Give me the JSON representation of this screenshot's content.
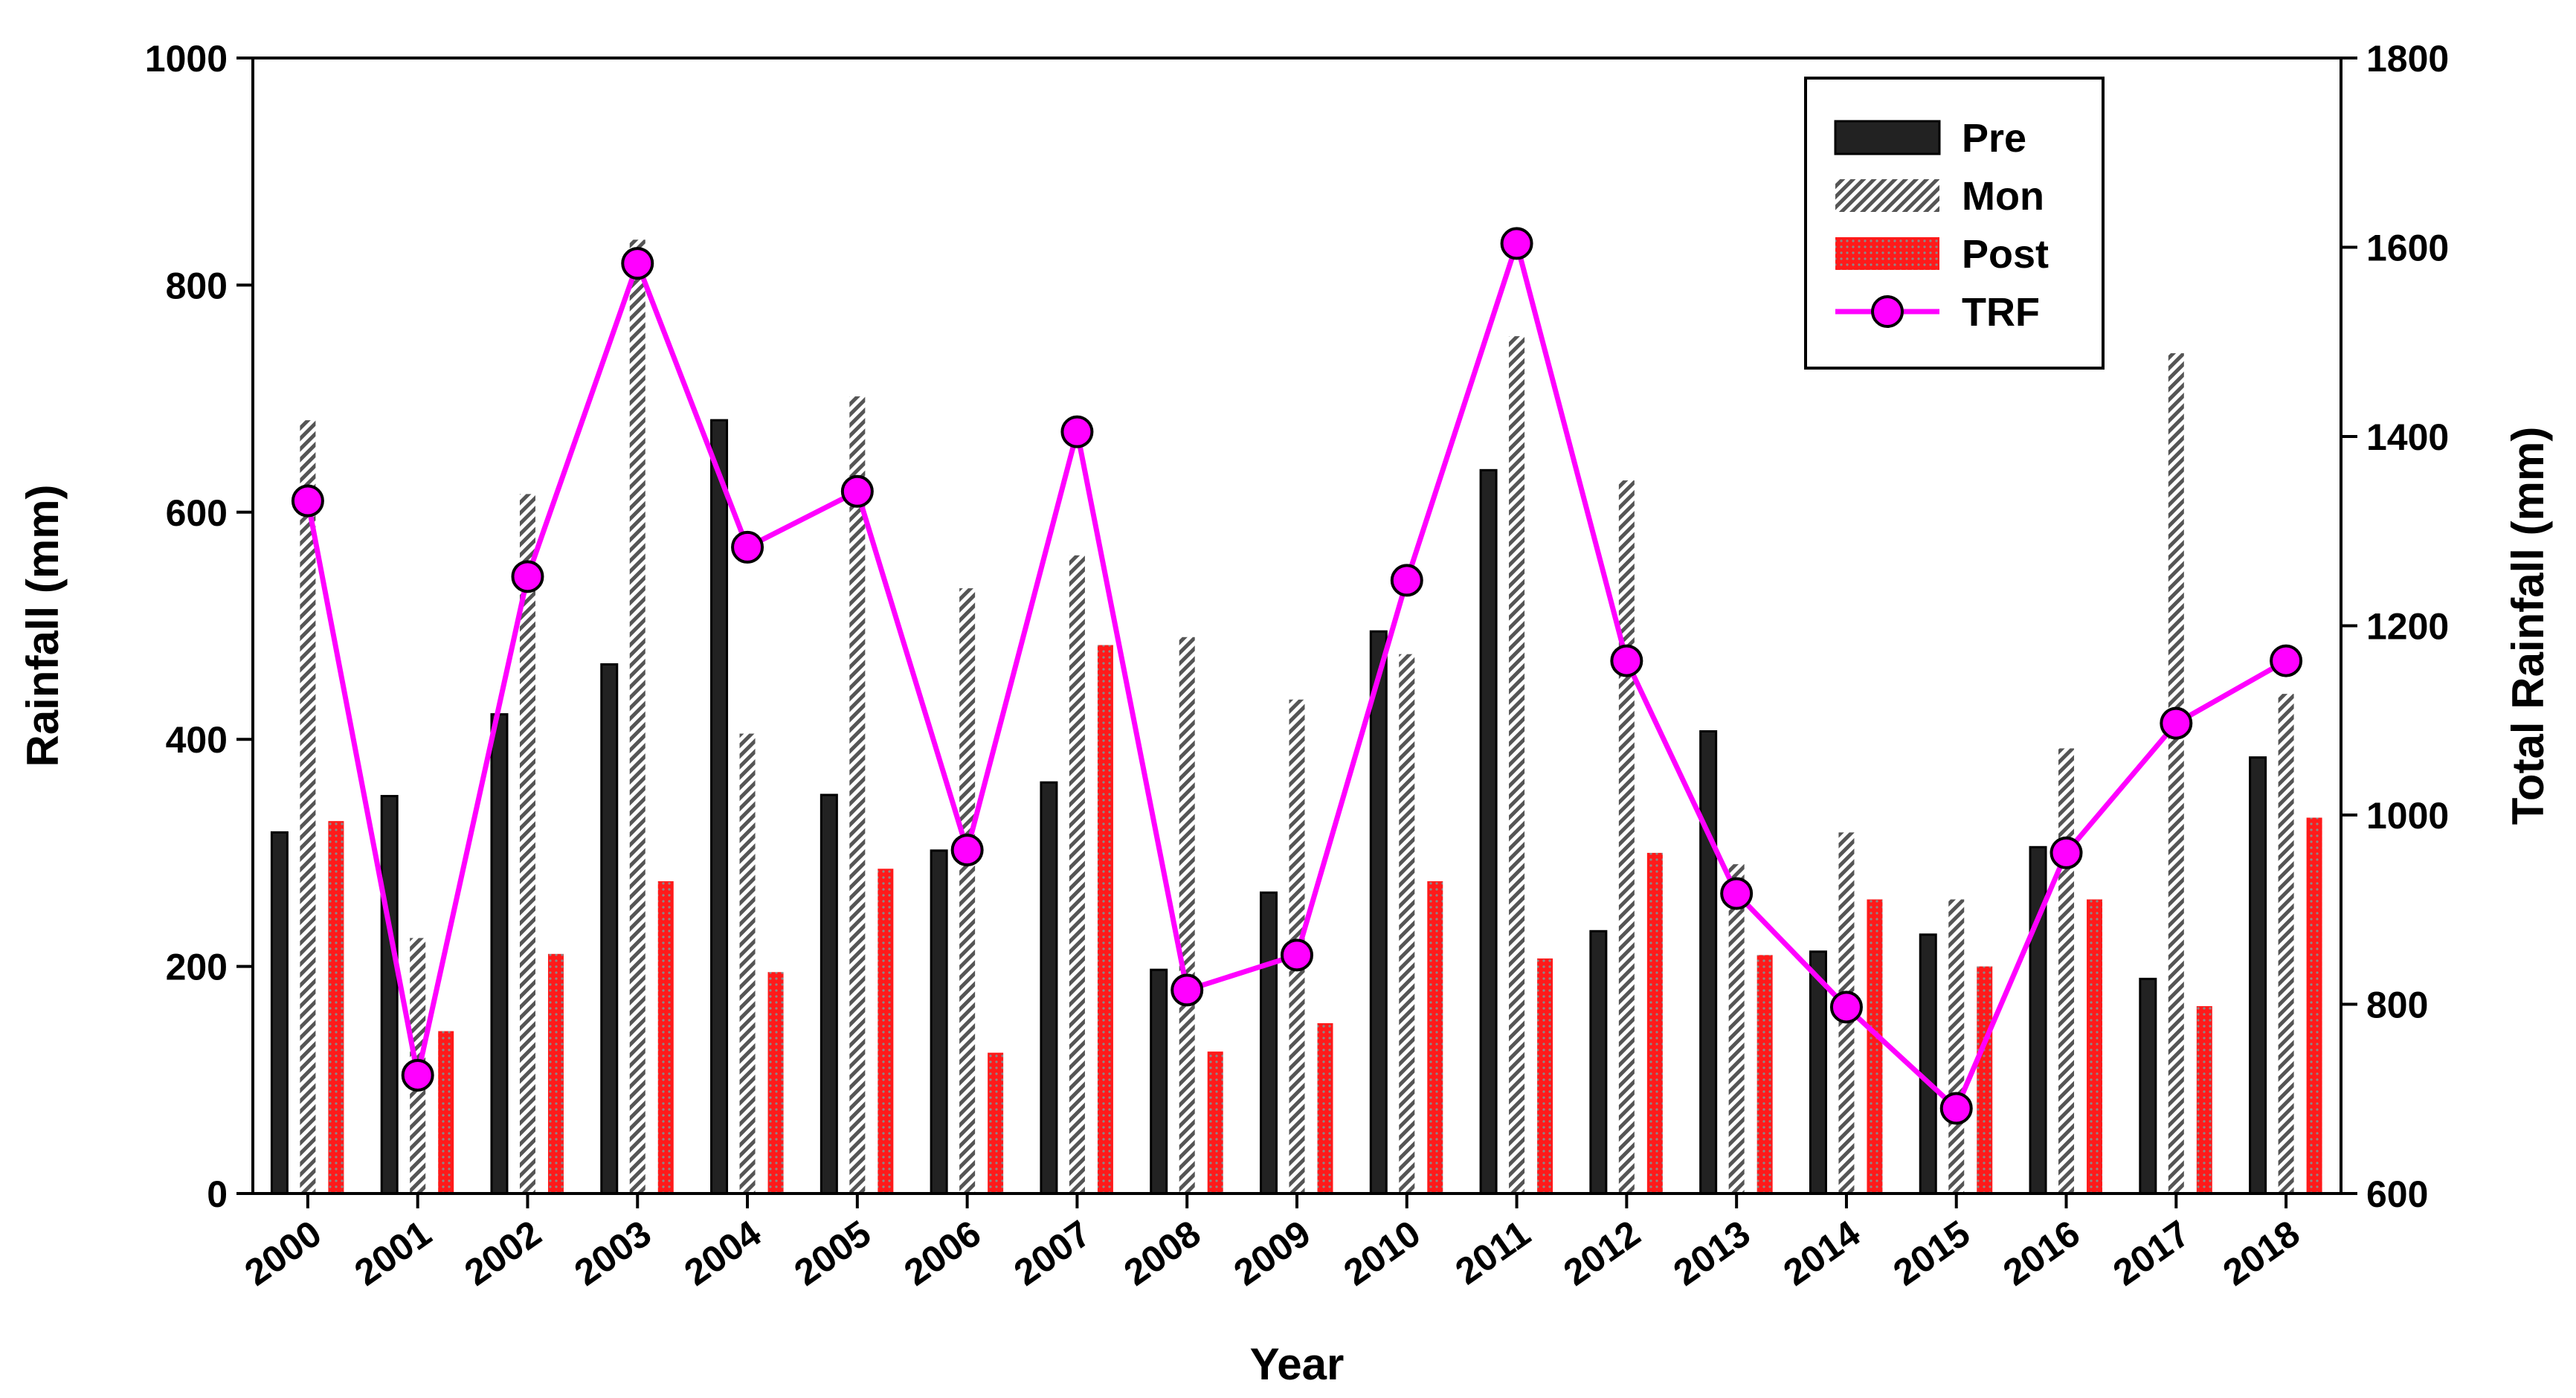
{
  "chart_data": {
    "type": "bar",
    "title": "",
    "xlabel": "Year",
    "ylabel": "Rainfall (mm)",
    "y2label": "Total Rainfall (mm)",
    "ylim": [
      0,
      1000
    ],
    "y2lim": [
      600,
      1800
    ],
    "yticks": [
      0,
      200,
      400,
      600,
      800,
      1000
    ],
    "y2ticks": [
      600,
      800,
      1000,
      1200,
      1400,
      1600,
      1800
    ],
    "grid": false,
    "legend_position": "top-right",
    "categories": [
      "2000",
      "2001",
      "2002",
      "2003",
      "2004",
      "2005",
      "2006",
      "2007",
      "2008",
      "2009",
      "2010",
      "2011",
      "2012",
      "2013",
      "2014",
      "2015",
      "2016",
      "2017",
      "2018"
    ],
    "series": [
      {
        "name": "Pre",
        "kind": "bar",
        "color": "#222222",
        "values": [
          318,
          350,
          422,
          466,
          681,
          351,
          302,
          362,
          197,
          265,
          495,
          637,
          231,
          407,
          213,
          228,
          305,
          189,
          384
        ]
      },
      {
        "name": "Mon",
        "kind": "bar",
        "color": "#555555",
        "pattern": "hatch",
        "values": [
          681,
          225,
          616,
          840,
          405,
          702,
          533,
          562,
          490,
          435,
          475,
          755,
          628,
          290,
          318,
          259,
          392,
          740,
          440
        ]
      },
      {
        "name": "Post",
        "kind": "bar",
        "color": "#ff1a1a",
        "pattern": "dots",
        "values": [
          328,
          143,
          211,
          275,
          195,
          286,
          124,
          483,
          125,
          150,
          275,
          207,
          300,
          210,
          259,
          200,
          259,
          165,
          331
        ]
      },
      {
        "name": "TRF",
        "kind": "line",
        "axis": "right",
        "color": "#ff00ff",
        "marker_color": "#ff00ff",
        "values": [
          1332,
          725,
          1252,
          1583,
          1283,
          1342,
          963,
          1405,
          815,
          852,
          1248,
          1604,
          1163,
          917,
          797,
          690,
          960,
          1097,
          1163
        ]
      }
    ]
  }
}
